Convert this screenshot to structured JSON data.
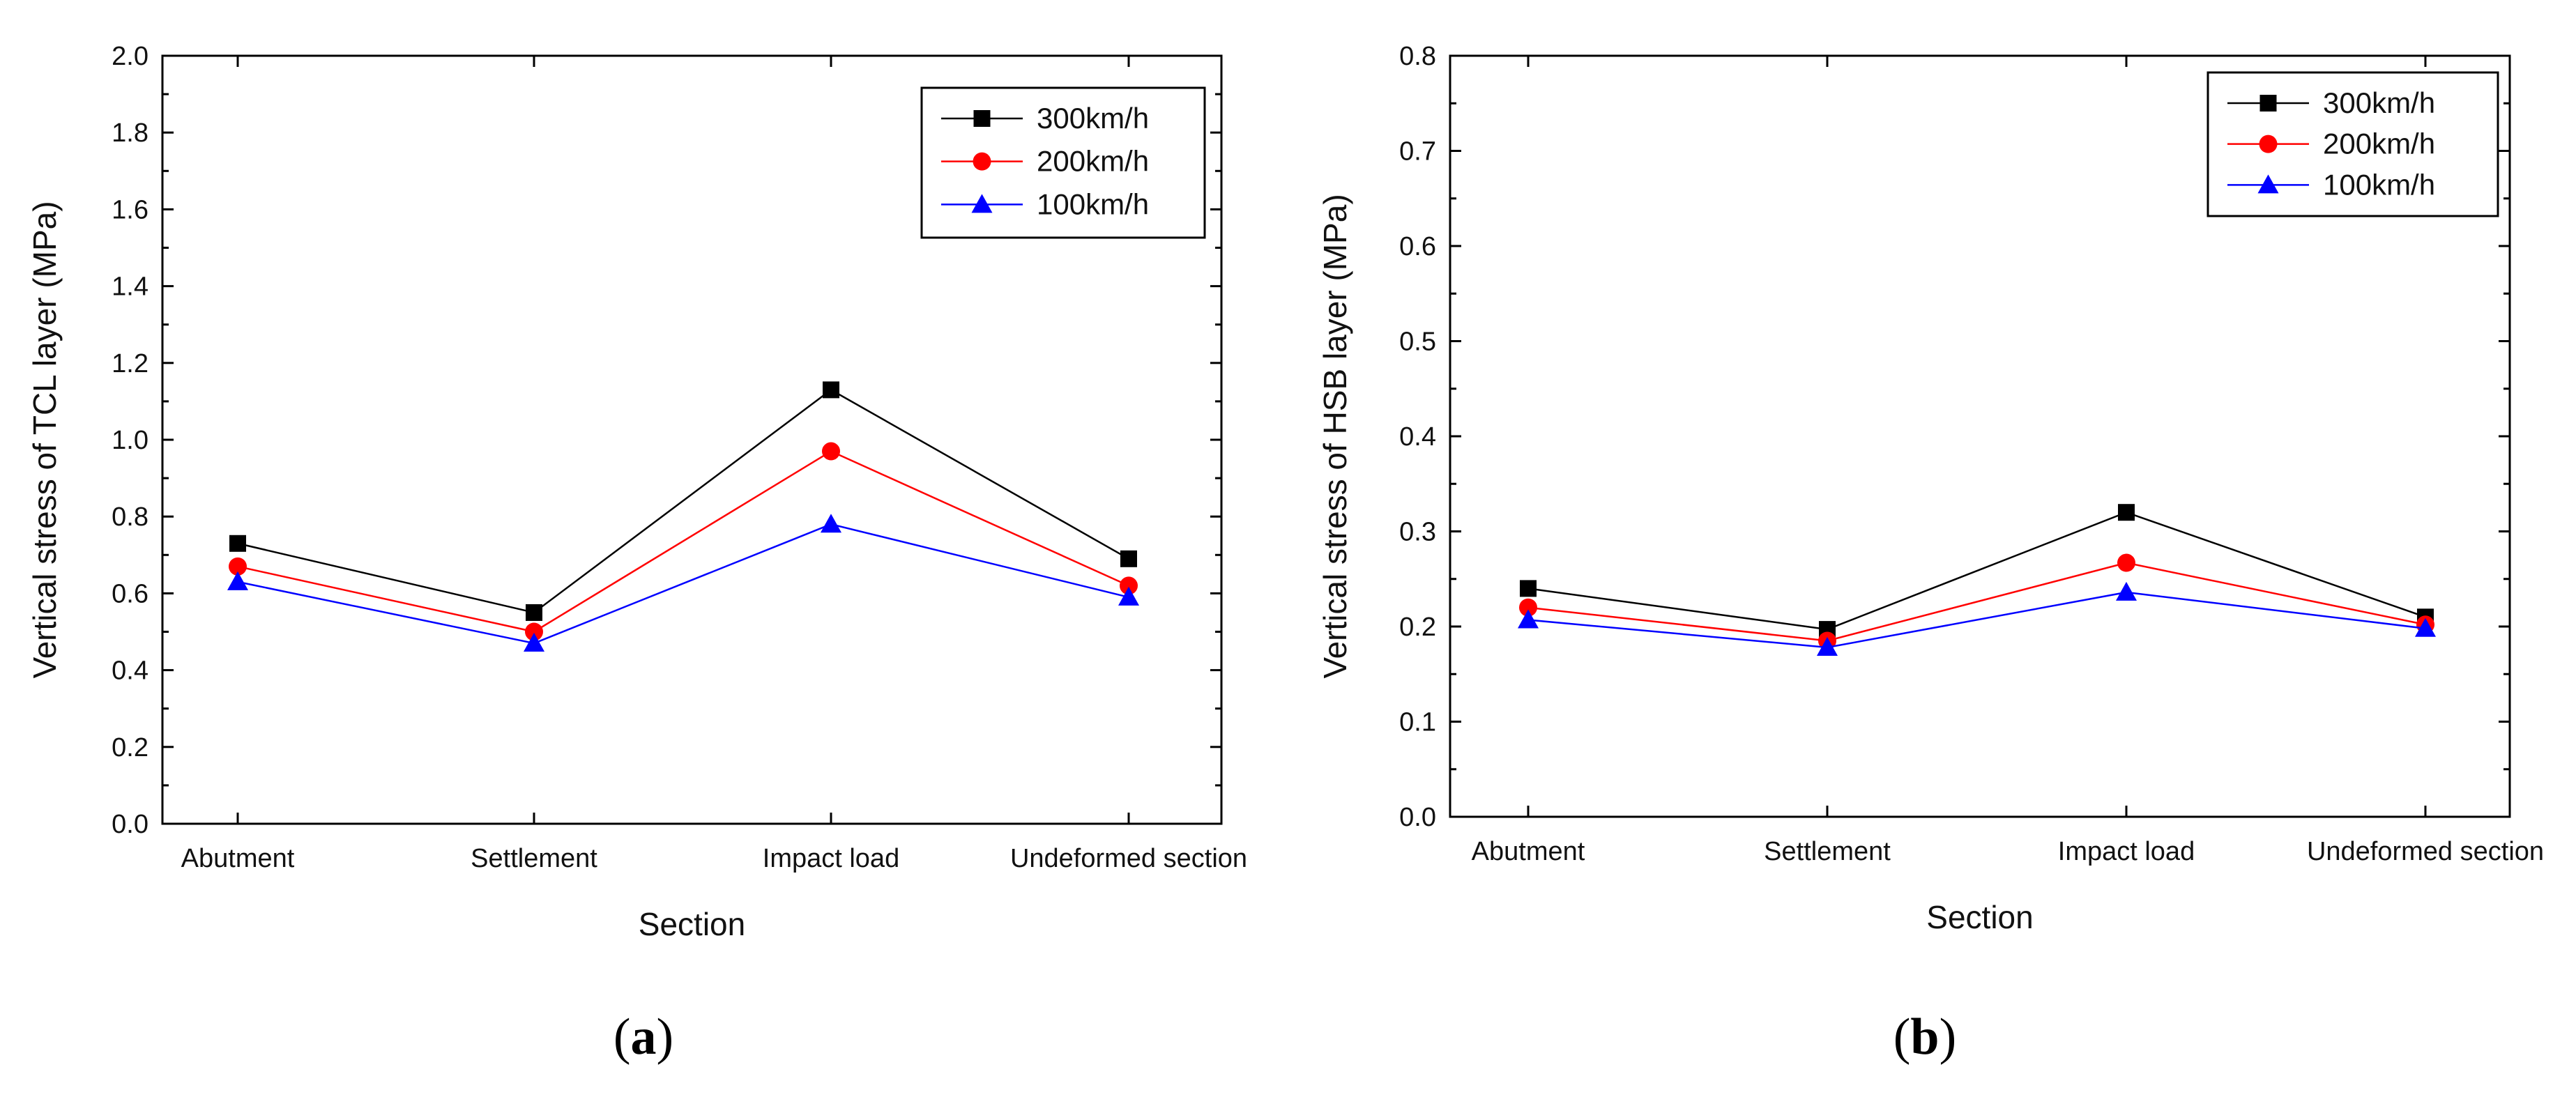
{
  "chart_data": [
    {
      "type": "line",
      "panel_label": "a",
      "categories": [
        "Abutment",
        "Settlement",
        "Impact load",
        "Undeformed section"
      ],
      "series": [
        {
          "name": "300km/h",
          "color": "#000000",
          "marker": "square",
          "values": [
            0.73,
            0.55,
            1.13,
            0.69
          ]
        },
        {
          "name": "200km/h",
          "color": "#ff0000",
          "marker": "circle",
          "values": [
            0.67,
            0.5,
            0.97,
            0.62
          ]
        },
        {
          "name": "100km/h",
          "color": "#0000ff",
          "marker": "triangle",
          "values": [
            0.63,
            0.47,
            0.78,
            0.59
          ]
        }
      ],
      "xlabel": "Section",
      "ylabel": "Vertical stress of TCL layer (MPa)",
      "ylim": [
        0,
        2.0
      ],
      "yticks": [
        "0.0",
        "0.2",
        "0.4",
        "0.6",
        "0.8",
        "1.0",
        "1.2",
        "1.4",
        "1.6",
        "1.8",
        "2.0"
      ],
      "legend_position": "top-right",
      "grid": false
    },
    {
      "type": "line",
      "panel_label": "b",
      "categories": [
        "Abutment",
        "Settlement",
        "Impact load",
        "Undeformed section"
      ],
      "series": [
        {
          "name": "300km/h",
          "color": "#000000",
          "marker": "square",
          "values": [
            0.24,
            0.197,
            0.32,
            0.21
          ]
        },
        {
          "name": "200km/h",
          "color": "#ff0000",
          "marker": "circle",
          "values": [
            0.22,
            0.185,
            0.267,
            0.202
          ]
        },
        {
          "name": "100km/h",
          "color": "#0000ff",
          "marker": "triangle",
          "values": [
            0.207,
            0.178,
            0.236,
            0.198
          ]
        }
      ],
      "xlabel": "Section",
      "ylabel": "Vertical stress of HSB layer (MPa)",
      "ylim": [
        0,
        0.8
      ],
      "yticks": [
        "0.0",
        "0.1",
        "0.2",
        "0.3",
        "0.4",
        "0.5",
        "0.6",
        "0.7",
        "0.8"
      ],
      "legend_position": "top-right",
      "grid": false
    }
  ]
}
